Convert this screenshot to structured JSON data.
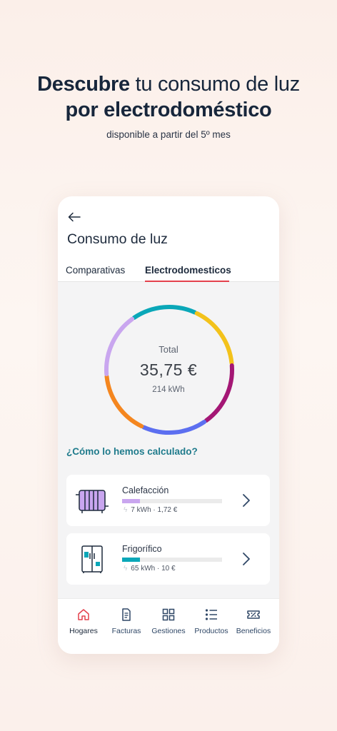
{
  "promo": {
    "headline_bold_1": "Descubre",
    "headline_regular_1": " tu consumo de luz",
    "headline_bold_2": "por electrodoméstico",
    "subtitle": "disponible a partir del 5º mes"
  },
  "screen": {
    "back_icon": "arrow-left-icon",
    "title": "Consumo de luz",
    "tabs": [
      {
        "label": "Comparativas",
        "active": false
      },
      {
        "label": "Electrodomesticos",
        "active": true
      }
    ],
    "accent_color": "#e4404c"
  },
  "summary": {
    "total_label": "Total",
    "total_value": "35,75 €",
    "total_kwh": "214 kWh",
    "segment_colors": [
      "#0aa7b8",
      "#f3c21b",
      "#a41775",
      "#5c6ff0",
      "#f4861f",
      "#c9a6ef"
    ]
  },
  "calc_link": "¿Cómo lo hemos calculado?",
  "appliances": [
    {
      "name": "Calefacción",
      "detail": "7 kWh · 1,72 €",
      "share": 0.18,
      "color": "#c9a6ef",
      "icon": "radiator-icon"
    },
    {
      "name": "Frigorífico",
      "detail": "65 kWh · 10 €",
      "share": 0.18,
      "color": "#0aa7b8",
      "icon": "fridge-icon"
    }
  ],
  "bottom_nav": [
    {
      "label": "Hogares",
      "icon": "home-icon",
      "active": true
    },
    {
      "label": "Facturas",
      "icon": "invoice-icon",
      "active": false
    },
    {
      "label": "Gestiones",
      "icon": "grid-icon",
      "active": false
    },
    {
      "label": "Productos",
      "icon": "list-icon",
      "active": false
    },
    {
      "label": "Beneficios",
      "icon": "ticket-icon",
      "active": false
    }
  ]
}
